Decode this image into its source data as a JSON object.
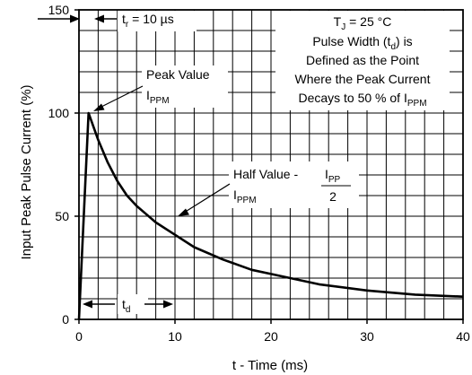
{
  "chart_data": {
    "type": "line",
    "title": "",
    "xlabel": "t - Time (ms)",
    "ylabel": "Input Peak Pulse Current (%)",
    "xlim": [
      0,
      40
    ],
    "ylim": [
      0,
      150
    ],
    "x_ticks": [
      0,
      10,
      20,
      30,
      40
    ],
    "y_ticks": [
      0,
      50,
      100,
      150
    ],
    "grid": true,
    "legend": "none",
    "series": [
      {
        "color": "#000000",
        "x": [
          0,
          1,
          2,
          3,
          4,
          5,
          6,
          7,
          8,
          10,
          12,
          15,
          18,
          20,
          25,
          30,
          35,
          40
        ],
        "values": [
          0,
          100,
          87,
          76,
          67,
          60,
          55,
          51,
          47,
          41,
          35,
          29,
          24,
          22,
          17,
          14,
          12,
          11
        ]
      }
    ],
    "annotations": {
      "tr": {
        "main": "t",
        "sub": "r",
        "rest": " = 10 µs"
      },
      "conditions": {
        "tj_main": "T",
        "tj_sub": "J",
        "tj_rest": " = 25 °C",
        "line2_a": "Pulse Width (t",
        "line2_sub": "d",
        "line2_b": ") is",
        "line3": "Defined as the Point",
        "line4": "Where the Peak Current",
        "line5_a": "Decays to 50 % of I",
        "line5_sub": "PPM"
      },
      "peak": {
        "line1": "Peak Value",
        "main": "I",
        "sub": "PPM"
      },
      "half": {
        "label": "Half Value -",
        "ipp_main": "I",
        "ipp_sub": "PP",
        "denominator": "2",
        "ippm_main": "I",
        "ippm_sub": "PPM"
      },
      "td": {
        "main": "t",
        "sub": "d"
      }
    }
  }
}
